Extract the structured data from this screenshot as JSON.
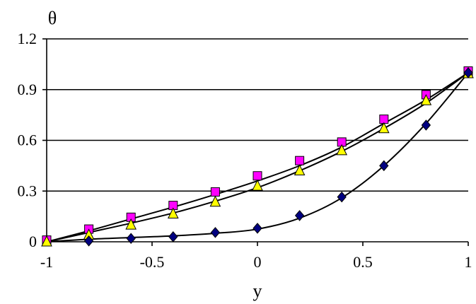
{
  "chart_data": {
    "type": "line",
    "title": "",
    "xlabel": "y",
    "ylabel": "θ",
    "xlim": [
      -1,
      1
    ],
    "ylim": [
      0,
      1.2
    ],
    "x_ticks": [
      -1,
      -0.5,
      0,
      0.5,
      1
    ],
    "x_tick_labels": [
      "-1",
      "-0.5",
      "0",
      "0.5",
      "1"
    ],
    "y_ticks": [
      0,
      0.3,
      0.6,
      0.9,
      1.2
    ],
    "y_tick_labels": [
      "0",
      "0.3",
      "0.6",
      "0.9",
      "1.2"
    ],
    "grid": "horizontal",
    "legend": "none",
    "series": [
      {
        "marker": "square",
        "color": "#ff00ff",
        "line": [
          [
            -1,
            0
          ],
          [
            -0.8,
            0.065
          ],
          [
            -0.6,
            0.135
          ],
          [
            -0.4,
            0.205
          ],
          [
            -0.2,
            0.28
          ],
          [
            0,
            0.36
          ],
          [
            0.2,
            0.45
          ],
          [
            0.4,
            0.56
          ],
          [
            0.6,
            0.7
          ],
          [
            0.8,
            0.84
          ],
          [
            1,
            1
          ]
        ],
        "points": [
          [
            -1,
            0.01
          ],
          [
            -0.8,
            0.075
          ],
          [
            -0.6,
            0.145
          ],
          [
            -0.4,
            0.215
          ],
          [
            -0.2,
            0.295
          ],
          [
            0,
            0.39
          ],
          [
            0.2,
            0.48
          ],
          [
            0.4,
            0.59
          ],
          [
            0.6,
            0.725
          ],
          [
            0.8,
            0.87
          ],
          [
            1,
            1.01
          ]
        ]
      },
      {
        "marker": "triangle",
        "color": "#ffff00",
        "line": [
          [
            -1,
            0
          ],
          [
            -0.8,
            0.055
          ],
          [
            -0.6,
            0.11
          ],
          [
            -0.4,
            0.17
          ],
          [
            -0.2,
            0.24
          ],
          [
            0,
            0.32
          ],
          [
            0.2,
            0.42
          ],
          [
            0.4,
            0.535
          ],
          [
            0.6,
            0.67
          ],
          [
            0.8,
            0.82
          ],
          [
            1,
            1
          ]
        ],
        "points": [
          [
            -1,
            0
          ],
          [
            -0.8,
            0.04
          ],
          [
            -0.6,
            0.1
          ],
          [
            -0.4,
            0.165
          ],
          [
            -0.2,
            0.235
          ],
          [
            0,
            0.33
          ],
          [
            0.2,
            0.42
          ],
          [
            0.4,
            0.54
          ],
          [
            0.6,
            0.67
          ],
          [
            0.8,
            0.835
          ],
          [
            1,
            0.995
          ]
        ]
      },
      {
        "marker": "diamond",
        "color": "#000080",
        "line": [
          [
            -1,
            0
          ],
          [
            -0.8,
            0.015
          ],
          [
            -0.6,
            0.025
          ],
          [
            -0.4,
            0.035
          ],
          [
            -0.2,
            0.05
          ],
          [
            0,
            0.075
          ],
          [
            0.2,
            0.14
          ],
          [
            0.4,
            0.26
          ],
          [
            0.6,
            0.45
          ],
          [
            0.8,
            0.7
          ],
          [
            1,
            1
          ]
        ],
        "points": [
          [
            -0.8,
            0.005
          ],
          [
            -0.6,
            0.02
          ],
          [
            -0.4,
            0.03
          ],
          [
            -0.2,
            0.055
          ],
          [
            0,
            0.08
          ],
          [
            0.2,
            0.155
          ],
          [
            0.4,
            0.265
          ],
          [
            0.6,
            0.45
          ],
          [
            0.8,
            0.69
          ],
          [
            1,
            1
          ]
        ]
      }
    ]
  }
}
